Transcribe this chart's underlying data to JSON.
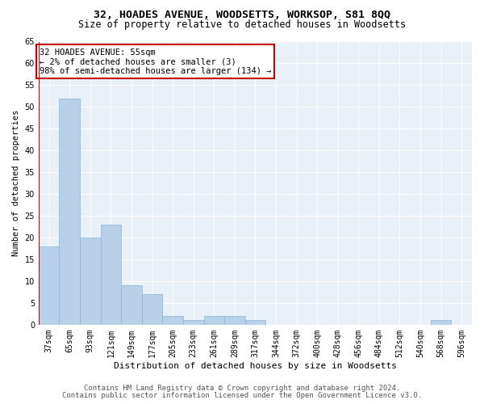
{
  "title_line1": "32, HOADES AVENUE, WOODSETTS, WORKSOP, S81 8QQ",
  "title_line2": "Size of property relative to detached houses in Woodsetts",
  "xlabel": "Distribution of detached houses by size in Woodsetts",
  "ylabel": "Number of detached properties",
  "categories": [
    "37sqm",
    "65sqm",
    "93sqm",
    "121sqm",
    "149sqm",
    "177sqm",
    "205sqm",
    "233sqm",
    "261sqm",
    "289sqm",
    "317sqm",
    "344sqm",
    "372sqm",
    "400sqm",
    "428sqm",
    "456sqm",
    "484sqm",
    "512sqm",
    "540sqm",
    "568sqm",
    "596sqm"
  ],
  "values": [
    18,
    52,
    20,
    23,
    9,
    7,
    2,
    1,
    2,
    2,
    1,
    0,
    0,
    0,
    0,
    0,
    0,
    0,
    0,
    1,
    0
  ],
  "bar_color": "#b8d0e8",
  "bar_edge_color": "#8ab4d4",
  "annotation_box_color": "#cc0000",
  "annotation_text": "32 HOADES AVENUE: 55sqm\n← 2% of detached houses are smaller (3)\n98% of semi-detached houses are larger (134) →",
  "ylim": [
    0,
    65
  ],
  "yticks": [
    0,
    5,
    10,
    15,
    20,
    25,
    30,
    35,
    40,
    45,
    50,
    55,
    60,
    65
  ],
  "background_color": "#eaf0f8",
  "footer_line1": "Contains HM Land Registry data © Crown copyright and database right 2024.",
  "footer_line2": "Contains public sector information licensed under the Open Government Licence v3.0.",
  "title_fontsize": 9.5,
  "subtitle_fontsize": 8.5,
  "axis_label_fontsize": 8,
  "tick_fontsize": 7,
  "annotation_fontsize": 7.5,
  "footer_fontsize": 6.5,
  "ylabel_fontsize": 7.5
}
